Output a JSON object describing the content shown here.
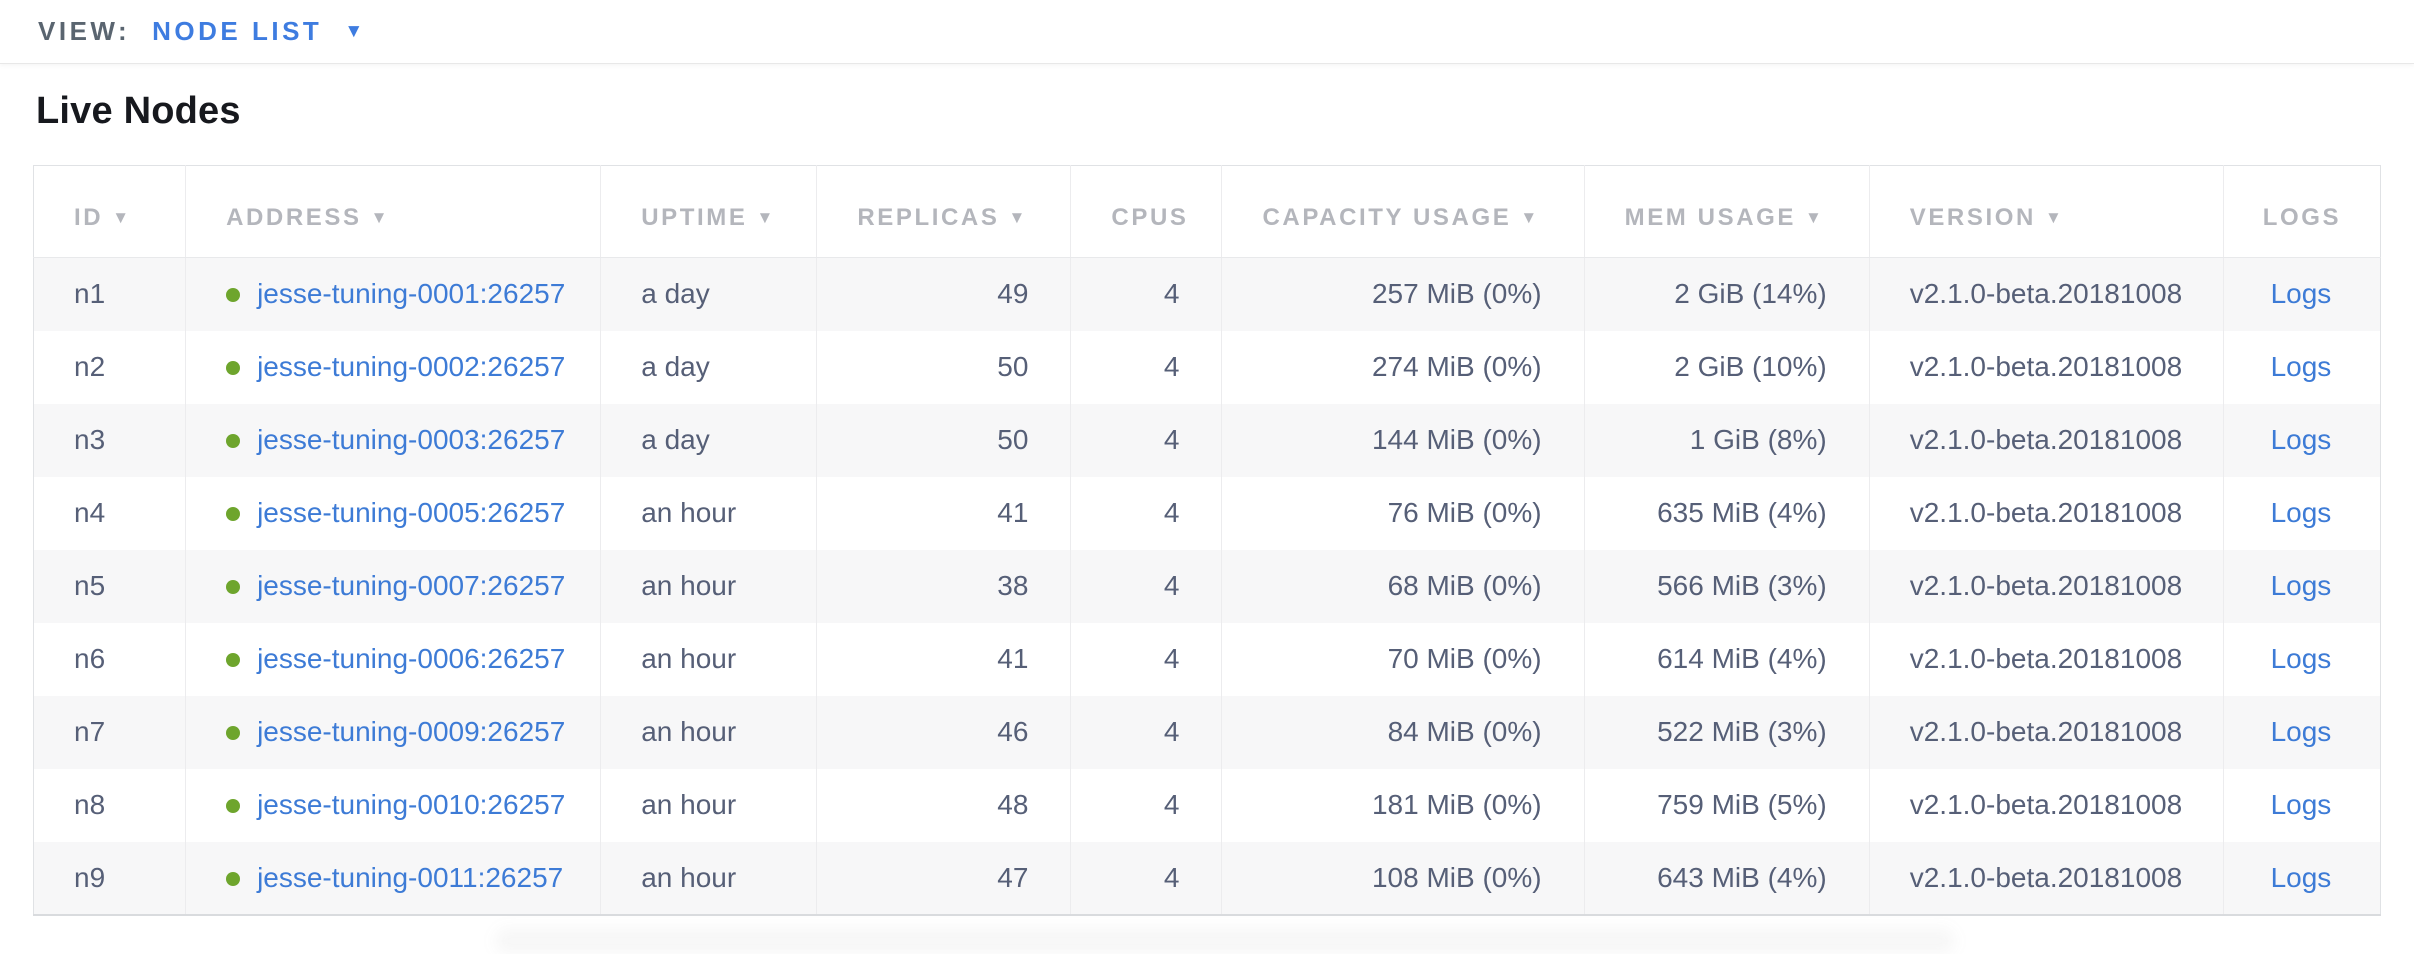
{
  "colors": {
    "accent_blue": "#3e7ce0",
    "link_blue": "#3d7bd6",
    "status_green": "#6ea52d",
    "header_gray": "#b4b6bc",
    "body_text": "#565f77",
    "alt_row_bg": "#f7f7f8"
  },
  "view_bar": {
    "label": "VIEW:",
    "selected": "NODE LIST",
    "caret_glyph": "▼"
  },
  "page": {
    "title": "Live Nodes"
  },
  "table": {
    "sort_caret_glyph": "▼",
    "columns": [
      {
        "key": "id",
        "label": "ID",
        "sorted": true,
        "align": "left"
      },
      {
        "key": "address",
        "label": "ADDRESS",
        "sorted": true,
        "align": "left"
      },
      {
        "key": "uptime",
        "label": "UPTIME",
        "sorted": true,
        "align": "left"
      },
      {
        "key": "replicas",
        "label": "REPLICAS",
        "sorted": true,
        "align": "right"
      },
      {
        "key": "cpus",
        "label": "CPUS",
        "sorted": false,
        "align": "right"
      },
      {
        "key": "capacity",
        "label": "CAPACITY USAGE",
        "sorted": true,
        "align": "right"
      },
      {
        "key": "mem",
        "label": "MEM USAGE",
        "sorted": true,
        "align": "right"
      },
      {
        "key": "version",
        "label": "VERSION",
        "sorted": true,
        "align": "left"
      },
      {
        "key": "logs",
        "label": "LOGS",
        "sorted": false,
        "align": "center"
      }
    ],
    "rows": [
      {
        "id": "n1",
        "status": "live",
        "address": "jesse-tuning-0001:26257",
        "uptime": "a day",
        "replicas": "49",
        "cpus": "4",
        "capacity": "257 MiB (0%)",
        "mem": "2 GiB (14%)",
        "version": "v2.1.0-beta.20181008",
        "logs": "Logs"
      },
      {
        "id": "n2",
        "status": "live",
        "address": "jesse-tuning-0002:26257",
        "uptime": "a day",
        "replicas": "50",
        "cpus": "4",
        "capacity": "274 MiB (0%)",
        "mem": "2 GiB (10%)",
        "version": "v2.1.0-beta.20181008",
        "logs": "Logs"
      },
      {
        "id": "n3",
        "status": "live",
        "address": "jesse-tuning-0003:26257",
        "uptime": "a day",
        "replicas": "50",
        "cpus": "4",
        "capacity": "144 MiB (0%)",
        "mem": "1 GiB (8%)",
        "version": "v2.1.0-beta.20181008",
        "logs": "Logs"
      },
      {
        "id": "n4",
        "status": "live",
        "address": "jesse-tuning-0005:26257",
        "uptime": "an hour",
        "replicas": "41",
        "cpus": "4",
        "capacity": "76 MiB (0%)",
        "mem": "635 MiB (4%)",
        "version": "v2.1.0-beta.20181008",
        "logs": "Logs"
      },
      {
        "id": "n5",
        "status": "live",
        "address": "jesse-tuning-0007:26257",
        "uptime": "an hour",
        "replicas": "38",
        "cpus": "4",
        "capacity": "68 MiB (0%)",
        "mem": "566 MiB (3%)",
        "version": "v2.1.0-beta.20181008",
        "logs": "Logs"
      },
      {
        "id": "n6",
        "status": "live",
        "address": "jesse-tuning-0006:26257",
        "uptime": "an hour",
        "replicas": "41",
        "cpus": "4",
        "capacity": "70 MiB (0%)",
        "mem": "614 MiB (4%)",
        "version": "v2.1.0-beta.20181008",
        "logs": "Logs"
      },
      {
        "id": "n7",
        "status": "live",
        "address": "jesse-tuning-0009:26257",
        "uptime": "an hour",
        "replicas": "46",
        "cpus": "4",
        "capacity": "84 MiB (0%)",
        "mem": "522 MiB (3%)",
        "version": "v2.1.0-beta.20181008",
        "logs": "Logs"
      },
      {
        "id": "n8",
        "status": "live",
        "address": "jesse-tuning-0010:26257",
        "uptime": "an hour",
        "replicas": "48",
        "cpus": "4",
        "capacity": "181 MiB (0%)",
        "mem": "759 MiB (5%)",
        "version": "v2.1.0-beta.20181008",
        "logs": "Logs"
      },
      {
        "id": "n9",
        "status": "live",
        "address": "jesse-tuning-0011:26257",
        "uptime": "an hour",
        "replicas": "47",
        "cpus": "4",
        "capacity": "108 MiB (0%)",
        "mem": "643 MiB (4%)",
        "version": "v2.1.0-beta.20181008",
        "logs": "Logs"
      }
    ]
  }
}
